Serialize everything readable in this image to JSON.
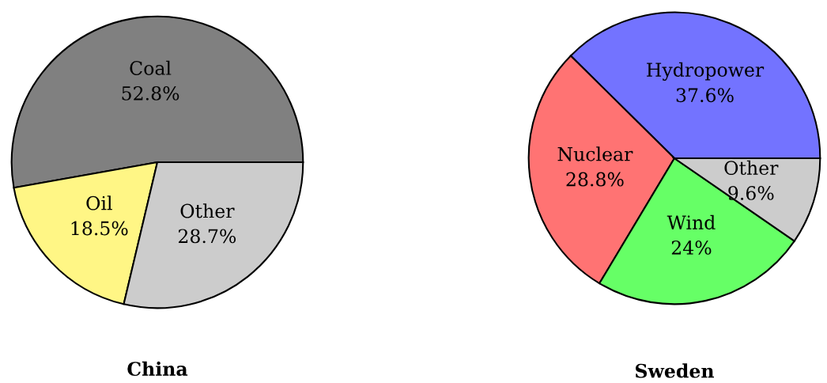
{
  "chart_data": [
    {
      "type": "pie",
      "title": "China",
      "categories": [
        "Coal",
        "Oil",
        "Other"
      ],
      "values": [
        52.8,
        18.5,
        28.7
      ],
      "colors": [
        "#808080",
        "#fff685",
        "#cccccc"
      ],
      "value_labels": [
        "52.8%",
        "18.5%",
        "28.7%"
      ]
    },
    {
      "type": "pie",
      "title": "Sweden",
      "categories": [
        "Hydropower",
        "Nuclear",
        "Wind",
        "Other"
      ],
      "values": [
        37.6,
        28.8,
        24,
        9.6
      ],
      "colors": [
        "#7373ff",
        "#ff7373",
        "#66ff66",
        "#cccccc"
      ],
      "value_labels": [
        "37.6%",
        "28.8%",
        "24%",
        "9.6%"
      ]
    }
  ]
}
